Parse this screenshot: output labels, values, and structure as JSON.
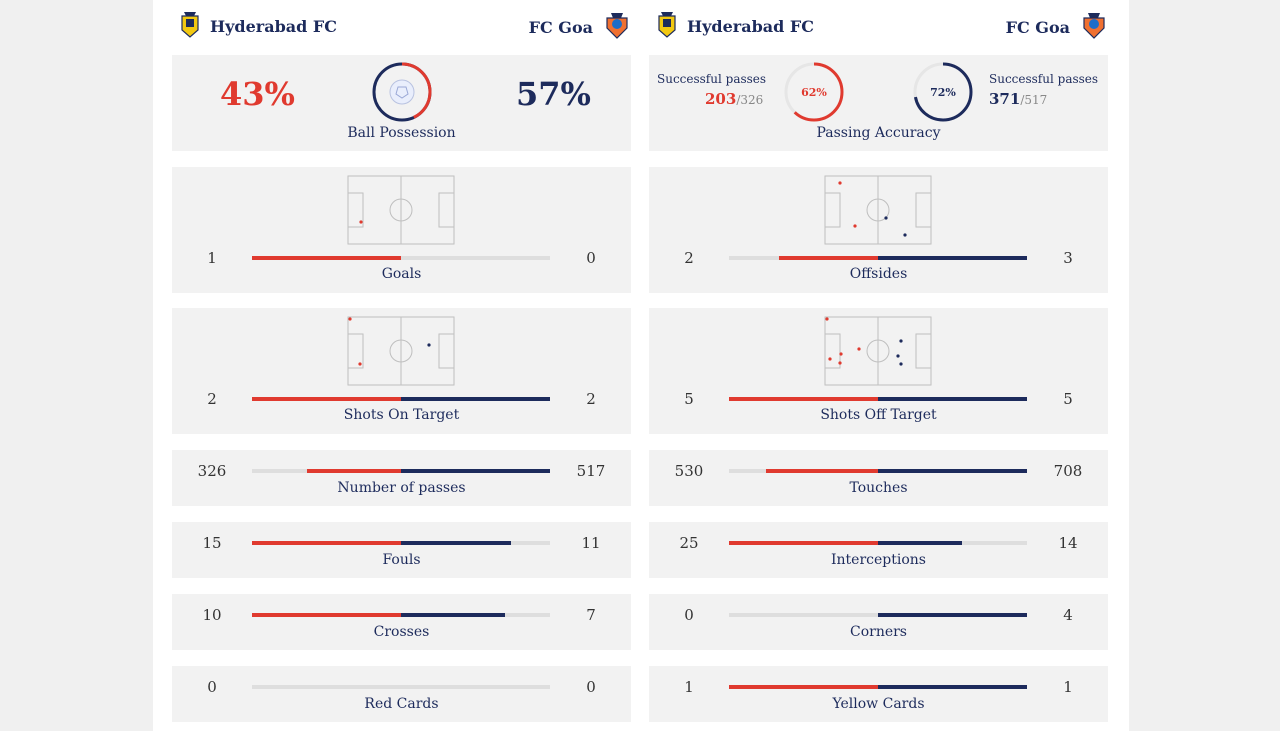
{
  "teams": {
    "home": "Hyderabad FC",
    "away": "FC Goa"
  },
  "colors": {
    "home": "#e03a2f",
    "away": "#1d2b5c",
    "track": "#dedede"
  },
  "possession": {
    "home": "43%",
    "away": "57%",
    "label": "Ball Possession",
    "home_fraction": 0.43
  },
  "passing": {
    "label": "Passing Accuracy",
    "home": {
      "caption": "Successful passes",
      "made": "203",
      "total": "/326",
      "pct": "62%",
      "fraction": 0.62
    },
    "away": {
      "caption": "Successful passes",
      "made": "371",
      "total": "/517",
      "pct": "72%",
      "fraction": 0.72
    }
  },
  "pitch_stats": {
    "goals": {
      "label": "Goals",
      "home": "1",
      "away": "0"
    },
    "offsides": {
      "label": "Offsides",
      "home": "2",
      "away": "3"
    },
    "shots_on": {
      "label": "Shots On Target",
      "home": "2",
      "away": "2"
    },
    "shots_off": {
      "label": "Shots Off Target",
      "home": "5",
      "away": "5"
    }
  },
  "rows": {
    "passes": {
      "label": "Number of passes",
      "home": "326",
      "away": "517"
    },
    "touches": {
      "label": "Touches",
      "home": "530",
      "away": "708"
    },
    "fouls": {
      "label": "Fouls",
      "home": "15",
      "away": "11"
    },
    "interceptions": {
      "label": "Interceptions",
      "home": "25",
      "away": "14"
    },
    "crosses": {
      "label": "Crosses",
      "home": "10",
      "away": "7"
    },
    "corners": {
      "label": "Corners",
      "home": "0",
      "away": "4"
    },
    "red": {
      "label": "Red Cards",
      "home": "0",
      "away": "0"
    },
    "yellow": {
      "label": "Yellow Cards",
      "home": "1",
      "away": "1"
    }
  },
  "icons": {
    "home_crest": "hyderabad-crest-icon",
    "away_crest": "goa-crest-icon",
    "ball": "football-icon"
  }
}
